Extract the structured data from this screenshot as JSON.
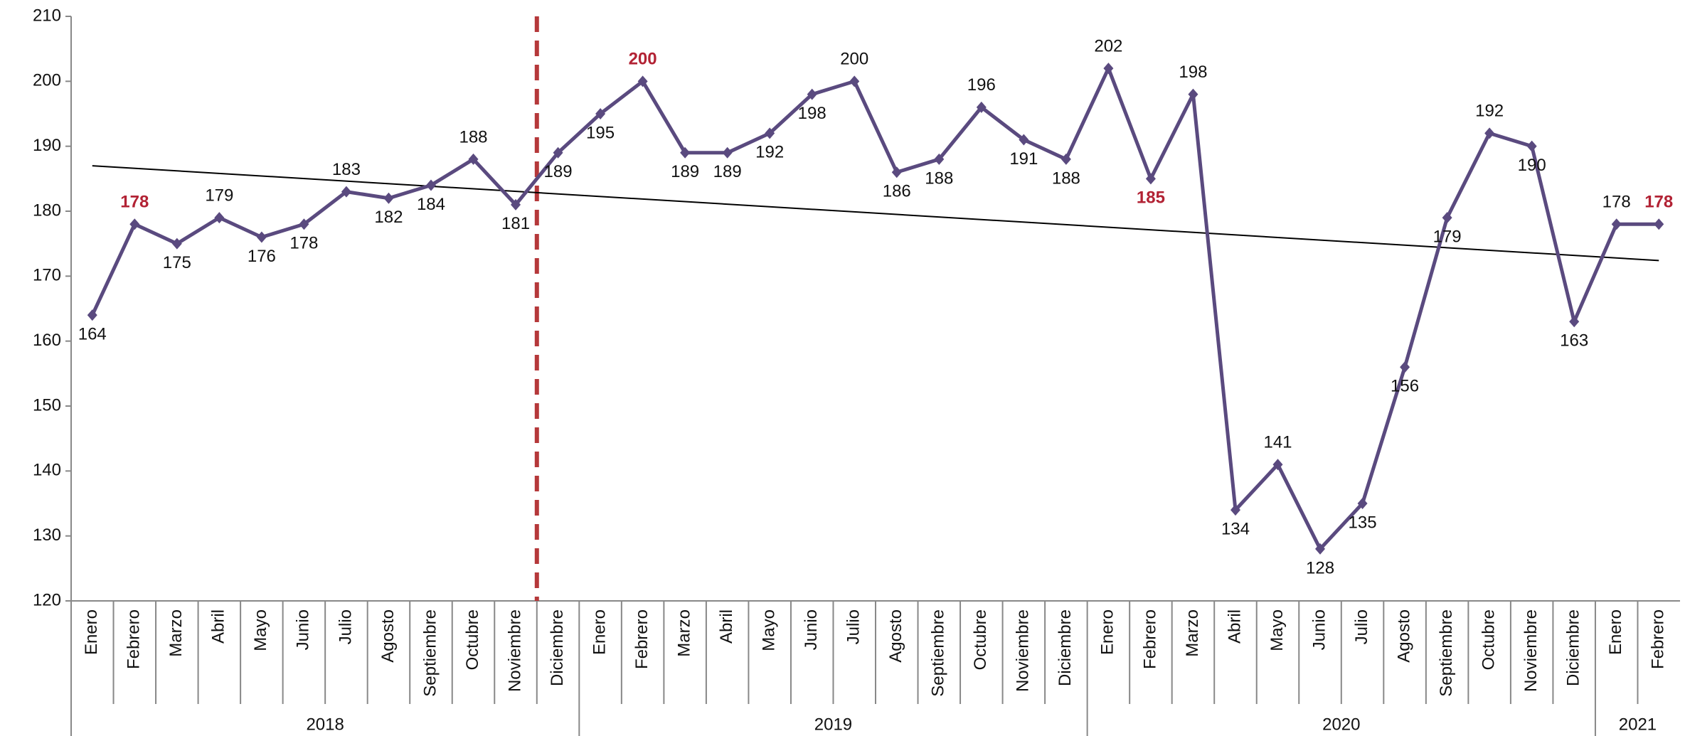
{
  "chart_data": {
    "type": "line",
    "groups": [
      {
        "name": "2018",
        "categories": [
          "Enero",
          "Febrero",
          "Marzo",
          "Abril",
          "Mayo",
          "Junio",
          "Julio",
          "Agosto",
          "Septiembre",
          "Octubre",
          "Noviembre",
          "Diciembre"
        ]
      },
      {
        "name": "2019",
        "categories": [
          "Enero",
          "Febrero",
          "Marzo",
          "Abril",
          "Mayo",
          "Junio",
          "Julio",
          "Agosto",
          "Septiembre",
          "Octubre",
          "Noviembre",
          "Diciembre"
        ]
      },
      {
        "name": "2020",
        "categories": [
          "Enero",
          "Febrero",
          "Marzo",
          "Abril",
          "Mayo",
          "Junio",
          "Julio",
          "Agosto",
          "Septiembre",
          "Octubre",
          "Noviembre",
          "Diciembre"
        ]
      },
      {
        "name": "2021",
        "categories": [
          "Enero",
          "Febrero"
        ]
      }
    ],
    "values": [
      164,
      178,
      175,
      179,
      176,
      178,
      183,
      182,
      184,
      188,
      181,
      189,
      195,
      200,
      189,
      189,
      192,
      198,
      200,
      186,
      188,
      196,
      191,
      188,
      202,
      185,
      198,
      134,
      141,
      128,
      135,
      156,
      179,
      192,
      190,
      163,
      178,
      178
    ],
    "color": "#5a4a7f",
    "highlighted_points": [
      1,
      13,
      25,
      37
    ],
    "highlight_color": "#b22234",
    "trendline": {
      "values": [
        187,
        172.4
      ],
      "color": "#000000"
    },
    "divider_color": "#b5383a",
    "ylim": [
      120,
      210
    ],
    "yticks": [
      120,
      130,
      140,
      150,
      160,
      170,
      180,
      190,
      200,
      210
    ]
  }
}
